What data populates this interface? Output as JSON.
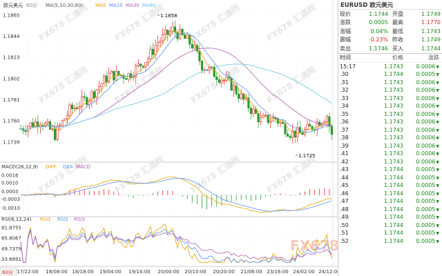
{
  "header": {
    "main_label": "欧元美元",
    "interval": "60分",
    "indicator": "MA(5,10,30,60)",
    "ma5": "MA5",
    "ma10": "MA10",
    "ma30": "MA30",
    "ma60": "MA60",
    "colors": {
      "ma5": "#e8a000",
      "ma10": "#5b8ff0",
      "ma30": "#b05fb0",
      "ma60": "#6ec4e8"
    }
  },
  "price_axis": [
    "1.1865",
    "1.1844",
    "1.1823",
    "1.1802",
    "1.1781",
    "1.1760",
    "1.1739"
  ],
  "high_label": "1.1858",
  "low_label": "1.1725",
  "macd": {
    "label": "MACD(26,12,9)",
    "diff": "DIFF",
    "dea": "DEA",
    "macd": "MACD",
    "axis": [
      "0.0016",
      "0.0010",
      "0.0003",
      "-0.0003",
      "-0.0010"
    ]
  },
  "rsi": {
    "label": "RSI(6,12,24)",
    "rsi1": "RSI1",
    "rsi2": "RSI2",
    "rsi3": "RSI3",
    "axis": [
      "81.8755",
      "65.8067",
      "49.7379",
      "33.6691"
    ]
  },
  "time_axis": [
    "17/22:00",
    "18/08:00",
    "18/18:00",
    "19/04:00",
    "19/14:00",
    "20/00:00",
    "20/10:00",
    "20/20:00",
    "21/06:00",
    "23/16:00",
    "24/02:00",
    "24/12:00"
  ],
  "bottom_interval": "60分",
  "watermark": "FX678 汇通网",
  "panel": {
    "title": "EURUSD 欧元美元",
    "quotes": [
      {
        "l1": "现价",
        "v1": "1.1744",
        "c1": "green",
        "l2": "开盘",
        "v2": "1.1749",
        "c2": "green"
      },
      {
        "l1": "涨跌",
        "v1": "0.0005",
        "c1": "green",
        "l2": "最高",
        "v2": "1.1770",
        "c2": "red"
      },
      {
        "l1": "涨幅",
        "v1": "0.04%",
        "c1": "green",
        "l2": "最低",
        "v2": "1.1743",
        "c2": "green"
      },
      {
        "l1": "震幅",
        "v1": "0.23%",
        "c1": "red",
        "l2": "昨收",
        "v2": "1.1749",
        "c2": "green"
      },
      {
        "l1": "卖出",
        "v1": "1.1746",
        "c1": "green",
        "l2": "买入",
        "v2": "1.1744",
        "c2": "green"
      }
    ],
    "columns": [
      "时间",
      "价格",
      "涨跌"
    ],
    "ticks": [
      {
        "t": "15:17",
        "p": "1.1743",
        "c": "0.0006"
      },
      {
        "t": ".30",
        "p": "1.1744",
        "c": "0.0005"
      },
      {
        "t": ".31",
        "p": "1.1743",
        "c": "0.0006"
      },
      {
        "t": ".32",
        "p": "1.1743",
        "c": "0.0006"
      },
      {
        "t": ".33",
        "p": "1.1743",
        "c": "0.0006"
      },
      {
        "t": ".34",
        "p": "1.1743",
        "c": "0.0006"
      },
      {
        "t": ".35",
        "p": "1.1743",
        "c": "0.0006"
      },
      {
        "t": ".36",
        "p": "1.1743",
        "c": "0.0006"
      },
      {
        "t": ".37",
        "p": "1.1743",
        "c": "0.0006"
      },
      {
        "t": ".38",
        "p": "1.1743",
        "c": "0.0006"
      },
      {
        "t": ".39",
        "p": "1.1743",
        "c": "0.0006"
      },
      {
        "t": ".41",
        "p": "1.1743",
        "c": "0.0006"
      },
      {
        "t": ".42",
        "p": "1.1743",
        "c": "0.0006"
      },
      {
        "t": ".43",
        "p": "1.1744",
        "c": "0.0005"
      },
      {
        "t": ".44",
        "p": "1.1744",
        "c": "0.0005"
      },
      {
        "t": ".45",
        "p": "1.1744",
        "c": "0.0005"
      },
      {
        "t": ".46",
        "p": "1.1744",
        "c": "0.0005"
      },
      {
        "t": ".47",
        "p": "1.1744",
        "c": "0.0005"
      },
      {
        "t": ".48",
        "p": "1.1744",
        "c": "0.0005"
      },
      {
        "t": ".49",
        "p": "1.1744",
        "c": "0.0005"
      },
      {
        "t": ".50",
        "p": "1.1744",
        "c": "0.0005"
      },
      {
        "t": ".51",
        "p": "1.1744",
        "c": "0.0005"
      },
      {
        "t": ".52",
        "p": "1.1744",
        "c": "0.0005"
      }
    ]
  }
}
